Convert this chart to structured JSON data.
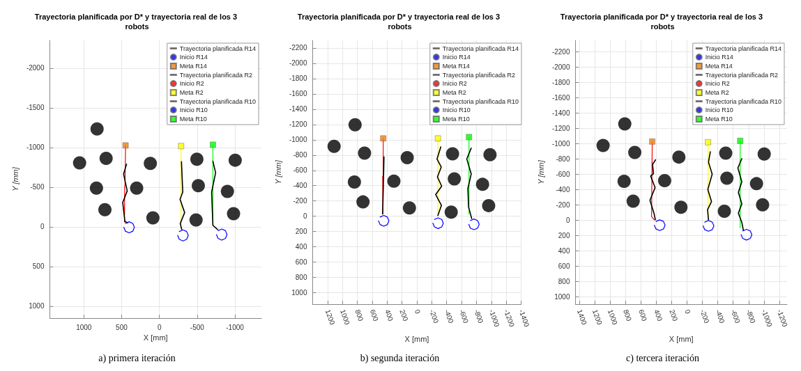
{
  "chart_data": [
    {
      "type": "line",
      "title": "Trayectoria planificada por D* y trayectoria real de los 3 robots",
      "xlabel": "X [mm]",
      "ylabel": "Y [mm]",
      "annotations": [
        "a) primera iteración"
      ],
      "xlim": [
        1450,
        -1350
      ],
      "ylim": [
        1150,
        -2350
      ],
      "xticks": [
        1000,
        500,
        0,
        -500,
        -1000
      ],
      "yticks": [
        -2000,
        -1500,
        -1000,
        -500,
        0,
        500,
        1000
      ],
      "grid": true,
      "legend": "top right",
      "series": [
        {
          "type": "scatter",
          "color": "#000000",
          "marker": "circle",
          "x": [
            825,
            1056,
            705,
            120,
            833,
            301,
            721,
            86,
            -496,
            -1003,
            -515,
            -900,
            -485,
            -981
          ],
          "values": [
            -1234,
            -807,
            -863,
            -799,
            -488,
            -488,
            -216,
            -114,
            -852,
            -840,
            -519,
            -447,
            -86,
            -166
          ]
        },
        {
          "name": "Trayectoria planificada R14",
          "type": "line",
          "color": "#ff0000",
          "marker": "none",
          "x": [
            448,
            455,
            460,
            462
          ],
          "values": [
            -1026,
            -540,
            -500,
            -60
          ]
        },
        {
          "name": "Inicio R14",
          "type": "scatter",
          "color": "#0000ff",
          "marker": "circle",
          "values": [
            null
          ]
        },
        {
          "name": "Meta R14",
          "type": "scatter",
          "color": "#f07f10",
          "marker": "square",
          "x": [
            448
          ],
          "values": [
            -1026
          ]
        },
        {
          "name": "Trayectoria planificada R2",
          "type": "line",
          "color": "#ffff00",
          "marker": "none",
          "x": [
            -287,
            -287
          ],
          "values": [
            -1018,
            -22
          ]
        },
        {
          "name": "Inicio R2",
          "type": "scatter",
          "color": "#ff0000",
          "marker": "circle",
          "values": [
            null
          ]
        },
        {
          "name": "Meta R2",
          "type": "scatter",
          "color": "#ffff00",
          "marker": "square",
          "x": [
            -287
          ],
          "values": [
            -1018
          ]
        },
        {
          "name": "Trayectoria planificada R10",
          "type": "line",
          "color": "#00ff00",
          "marker": "none",
          "x": [
            -708,
            -708
          ],
          "values": [
            -1035,
            -17
          ]
        },
        {
          "name": "Inicio R10",
          "type": "scatter",
          "color": "#0000ff",
          "marker": "circle",
          "values": [
            null
          ]
        },
        {
          "name": "Meta R10",
          "type": "scatter",
          "color": "#00ff00",
          "marker": "square",
          "x": [
            -708
          ],
          "values": [
            -1035
          ]
        },
        {
          "type": "line",
          "color": "#000000",
          "marker": "none",
          "x": [
            435,
            474,
            426,
            485,
            457,
            421
          ],
          "values": [
            -791,
            -666,
            -452,
            -308,
            -69,
            -50
          ]
        },
        {
          "type": "line",
          "color": "#000000",
          "marker": "none",
          "x": [
            -292,
            -309,
            -273,
            -334,
            -276,
            -295
          ],
          "values": [
            -821,
            -438,
            -347,
            -180,
            -42,
            33
          ]
        },
        {
          "type": "line",
          "color": "#000000",
          "marker": "none",
          "x": [
            -708,
            -744,
            -691,
            -708,
            -769
          ],
          "values": [
            -827,
            -682,
            -438,
            -19,
            33
          ]
        },
        {
          "type": "line",
          "color": "#0000ff",
          "marker": "none",
          "x": [
            471,
            450,
            401,
            352,
            331,
            352,
            401,
            450
          ],
          "values": [
            6,
            55,
            76,
            55,
            6,
            -43,
            -64,
            -43
          ]
        },
        {
          "type": "line",
          "color": "#0000ff",
          "marker": "none",
          "x": [
            -242,
            -263,
            -312,
            -361,
            -382,
            -361,
            -312,
            -263
          ],
          "values": [
            108,
            157,
            178,
            157,
            108,
            59,
            38,
            59
          ]
        },
        {
          "type": "line",
          "color": "#0000ff",
          "marker": "none",
          "x": [
            -755,
            -776,
            -825,
            -874,
            -895,
            -874,
            -825,
            -776
          ],
          "values": [
            97,
            146,
            167,
            146,
            97,
            48,
            27,
            48
          ]
        }
      ]
    },
    {
      "type": "line",
      "title": "Trayectoria planificada por D* y trayectoria real de los 3 robots",
      "xlabel": "X [mm]",
      "ylabel": "Y [mm]",
      "annotations": [
        "b) segunda iteración"
      ],
      "xlim": [
        1400,
        -1400
      ],
      "ylim": [
        1150,
        -2300
      ],
      "xticks": [
        1200,
        1000,
        800,
        600,
        400,
        200,
        0,
        -200,
        -400,
        -600,
        -800,
        -1000,
        -1200,
        -1400
      ],
      "yticks": [
        -2200,
        -2000,
        -1800,
        -1600,
        -1400,
        -1200,
        -1000,
        -800,
        -600,
        -400,
        -200,
        0,
        200,
        400,
        600,
        800,
        1000
      ],
      "grid": true,
      "legend": "top right",
      "series": [
        {
          "type": "scatter",
          "color": "#000000",
          "marker": "circle",
          "x": [
            830,
            1112,
            703,
            130,
            839,
            309,
            724,
            100,
            -479,
            -982,
            -503,
            -882,
            -461,
            -964
          ],
          "values": [
            -1196,
            -915,
            -825,
            -767,
            -447,
            -459,
            -187,
            -109,
            -816,
            -804,
            -489,
            -417,
            -54,
            -139
          ]
        },
        {
          "name": "Trayectoria planificada R14",
          "type": "line",
          "color": "#ff0000",
          "marker": "none",
          "x": [
            452,
            452,
            460,
            457
          ],
          "values": [
            -1018,
            -530,
            -520,
            -30
          ]
        },
        {
          "name": "Inicio R14",
          "type": "scatter",
          "color": "#0000ff",
          "marker": "circle",
          "values": [
            null
          ]
        },
        {
          "name": "Meta R14",
          "type": "scatter",
          "color": "#f07f10",
          "marker": "square",
          "x": [
            452
          ],
          "values": [
            -1018
          ]
        },
        {
          "name": "Trayectoria planificada R2",
          "type": "line",
          "color": "#ffff00",
          "marker": "none",
          "x": [
            -282,
            -282
          ],
          "values": [
            -1018,
            -30
          ]
        },
        {
          "name": "Inicio R2",
          "type": "scatter",
          "color": "#ff0000",
          "marker": "circle",
          "values": [
            null
          ]
        },
        {
          "name": "Meta R2",
          "type": "scatter",
          "color": "#ffff00",
          "marker": "square",
          "x": [
            -282
          ],
          "values": [
            -1018
          ]
        },
        {
          "name": "Trayectoria planificada R10",
          "type": "line",
          "color": "#00ff00",
          "marker": "none",
          "x": [
            -700,
            -700
          ],
          "values": [
            -1036,
            -30
          ]
        },
        {
          "name": "Inicio R10",
          "type": "scatter",
          "color": "#0000ff",
          "marker": "circle",
          "values": [
            null
          ]
        },
        {
          "name": "Meta R10",
          "type": "scatter",
          "color": "#00ff00",
          "marker": "square",
          "x": [
            -700
          ],
          "values": [
            -1036
          ]
        },
        {
          "type": "line",
          "color": "#000000",
          "marker": "none",
          "x": [
            442,
            451,
            460
          ],
          "values": [
            -776,
            -378,
            -30
          ]
        },
        {
          "type": "line",
          "color": "#000000",
          "marker": "none",
          "x": [
            -321,
            -270,
            -327,
            -276,
            -333,
            -252,
            -330,
            -282
          ],
          "values": [
            -906,
            -749,
            -644,
            -514,
            -393,
            -284,
            -142,
            -10
          ]
        },
        {
          "type": "line",
          "color": "#000000",
          "marker": "none",
          "x": [
            -730,
            -670,
            -730,
            -685,
            -694,
            -736
          ],
          "values": [
            -891,
            -749,
            -553,
            -363,
            -121,
            30
          ]
        },
        {
          "type": "line",
          "color": "#0000ff",
          "marker": "none",
          "x": [
            515,
            494,
            445,
            396,
            375,
            396,
            445,
            494
          ],
          "values": [
            60,
            109,
            130,
            109,
            60,
            11,
            -10,
            11
          ]
        },
        {
          "type": "line",
          "color": "#0000ff",
          "marker": "none",
          "x": [
            -215,
            -236,
            -285,
            -334,
            -355,
            -334,
            -285,
            -236
          ],
          "values": [
            91,
            140,
            161,
            140,
            91,
            42,
            21,
            42
          ]
        },
        {
          "type": "line",
          "color": "#0000ff",
          "marker": "none",
          "x": [
            -697,
            -718,
            -767,
            -816,
            -837,
            -816,
            -767,
            -718
          ],
          "values": [
            106,
            155,
            176,
            155,
            106,
            57,
            36,
            57
          ]
        }
      ]
    },
    {
      "type": "line",
      "title": "Trayectoria planificada por D* y trayectoria real de los 3 robots",
      "xlabel": "X [mm]",
      "ylabel": "Y [mm]",
      "annotations": [
        "c) tercera iteración"
      ],
      "xlim": [
        1450,
        -1300
      ],
      "ylim": [
        1100,
        -2350
      ],
      "xticks": [
        1400,
        1200,
        1000,
        800,
        600,
        400,
        200,
        0,
        -200,
        -400,
        -600,
        -800,
        -1000,
        -1200
      ],
      "yticks": [
        -2200,
        -2000,
        -1800,
        -1600,
        -1400,
        -1200,
        -1000,
        -800,
        -600,
        -400,
        -200,
        0,
        200,
        400,
        600,
        800,
        1000
      ],
      "grid": true,
      "legend": "top right",
      "series": [
        {
          "type": "scatter",
          "color": "#000000",
          "marker": "circle",
          "x": [
            809,
            1091,
            679,
            106,
            818,
            291,
            700,
            79,
            -503,
            -1003,
            -518,
            -903,
            -485,
            -982
          ],
          "values": [
            -1258,
            -976,
            -885,
            -824,
            -506,
            -515,
            -248,
            -167,
            -876,
            -864,
            -548,
            -476,
            -115,
            -200
          ]
        },
        {
          "name": "Trayectoria planificada R14",
          "type": "line",
          "color": "#ff0000",
          "marker": "none",
          "x": [
            452,
            461,
            424
          ],
          "values": [
            -1027,
            -45,
            0
          ]
        },
        {
          "name": "Inicio R14",
          "type": "scatter",
          "color": "#0000ff",
          "marker": "circle",
          "values": [
            null
          ]
        },
        {
          "name": "Meta R14",
          "type": "scatter",
          "color": "#f07f10",
          "marker": "square",
          "x": [
            452
          ],
          "values": [
            -1027
          ]
        },
        {
          "name": "Trayectoria planificada R2",
          "type": "line",
          "color": "#ffff00",
          "marker": "none",
          "x": [
            -273,
            -273
          ],
          "values": [
            -1018,
            -10
          ]
        },
        {
          "name": "Inicio R2",
          "type": "scatter",
          "color": "#ff0000",
          "marker": "circle",
          "values": [
            null
          ]
        },
        {
          "name": "Meta R2",
          "type": "scatter",
          "color": "#ffff00",
          "marker": "square",
          "x": [
            -273
          ],
          "values": [
            -1018
          ]
        },
        {
          "name": "Trayectoria planificada R10",
          "type": "line",
          "color": "#00ff00",
          "marker": "none",
          "x": [
            -691,
            -691
          ],
          "values": [
            -1036,
            100
          ]
        },
        {
          "name": "Inicio R10",
          "type": "scatter",
          "color": "#0000ff",
          "marker": "circle",
          "values": [
            null
          ]
        },
        {
          "name": "Meta R10",
          "type": "scatter",
          "color": "#00ff00",
          "marker": "square",
          "x": [
            -691
          ],
          "values": [
            -1036
          ]
        },
        {
          "type": "line",
          "color": "#000000",
          "marker": "none",
          "x": [
            409,
            448,
            436,
            473,
            415,
            482,
            430,
            412
          ],
          "values": [
            -788,
            -727,
            -606,
            -576,
            -424,
            -258,
            -91,
            -6
          ]
        },
        {
          "type": "line",
          "color": "#000000",
          "marker": "none",
          "x": [
            -303,
            -279,
            -327,
            -270,
            -318,
            -267,
            -279
          ],
          "values": [
            -894,
            -758,
            -600,
            -400,
            -242,
            -136,
            0
          ]
        },
        {
          "type": "line",
          "color": "#000000",
          "marker": "none",
          "x": [
            -712,
            -661,
            -712,
            -667,
            -712,
            -667,
            -712,
            -733
          ],
          "values": [
            -803,
            -682,
            -500,
            -364,
            -212,
            -91,
            30,
            136
          ]
        },
        {
          "type": "line",
          "color": "#0000ff",
          "marker": "none",
          "x": [
            425,
            404,
            355,
            306,
            285,
            306,
            355,
            404
          ],
          "values": [
            67,
            116,
            137,
            116,
            67,
            18,
            -3,
            18
          ]
        },
        {
          "type": "line",
          "color": "#0000ff",
          "marker": "none",
          "x": [
            -209,
            -230,
            -279,
            -328,
            -349,
            -328,
            -279,
            -230
          ],
          "values": [
            76,
            125,
            146,
            125,
            76,
            27,
            6,
            27
          ]
        },
        {
          "type": "line",
          "color": "#0000ff",
          "marker": "none",
          "x": [
            -703,
            -724,
            -773,
            -822,
            -843,
            -822,
            -773,
            -724
          ],
          "values": [
            191,
            240,
            261,
            240,
            191,
            142,
            121,
            142
          ]
        }
      ]
    }
  ]
}
